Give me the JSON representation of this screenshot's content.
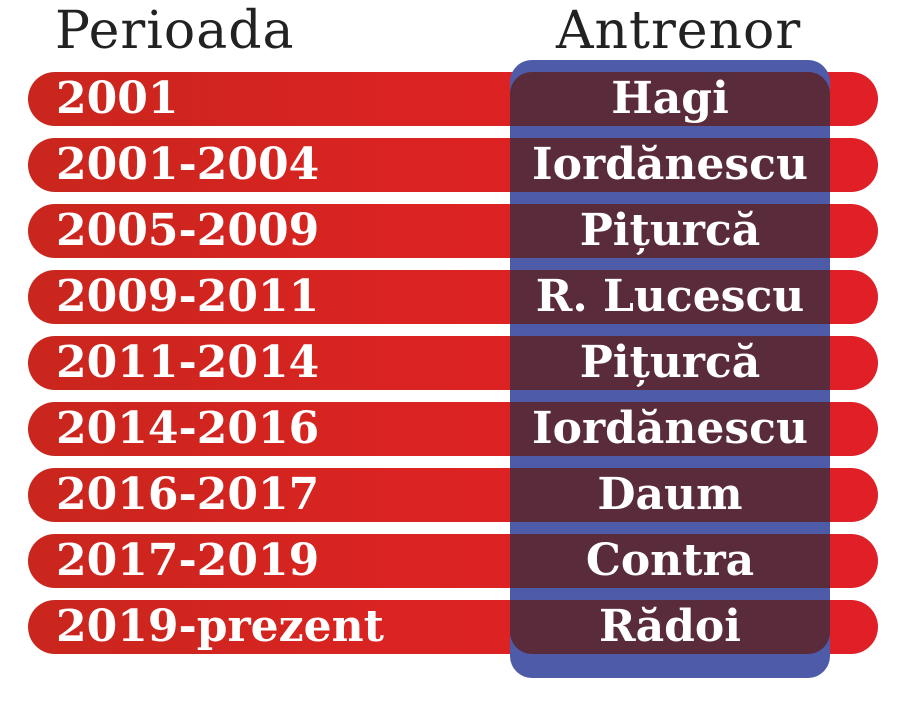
{
  "headers": {
    "period": "Perioada",
    "coach": "Antrenor"
  },
  "rows": [
    {
      "period": "2001",
      "coach": "Hagi"
    },
    {
      "period": "2001-2004",
      "coach": "Iordănescu"
    },
    {
      "period": "2005-2009",
      "coach": "Pițurcă"
    },
    {
      "period": "2009-2011",
      "coach": "R. Lucescu"
    },
    {
      "period": "2011-2014",
      "coach": "Pițurcă"
    },
    {
      "period": "2014-2016",
      "coach": "Iordănescu"
    },
    {
      "period": "2016-2017",
      "coach": "Daum"
    },
    {
      "period": "2017-2019",
      "coach": "Contra"
    },
    {
      "period": "2019-prezent",
      "coach": "Rădoi"
    }
  ],
  "colors": {
    "row_red": "#db2322",
    "coach_panel_blue": "#4d5ba8",
    "coach_cell_maroon": "#5a2b3b",
    "header_text": "#222222",
    "cell_text": "#ffffff"
  }
}
